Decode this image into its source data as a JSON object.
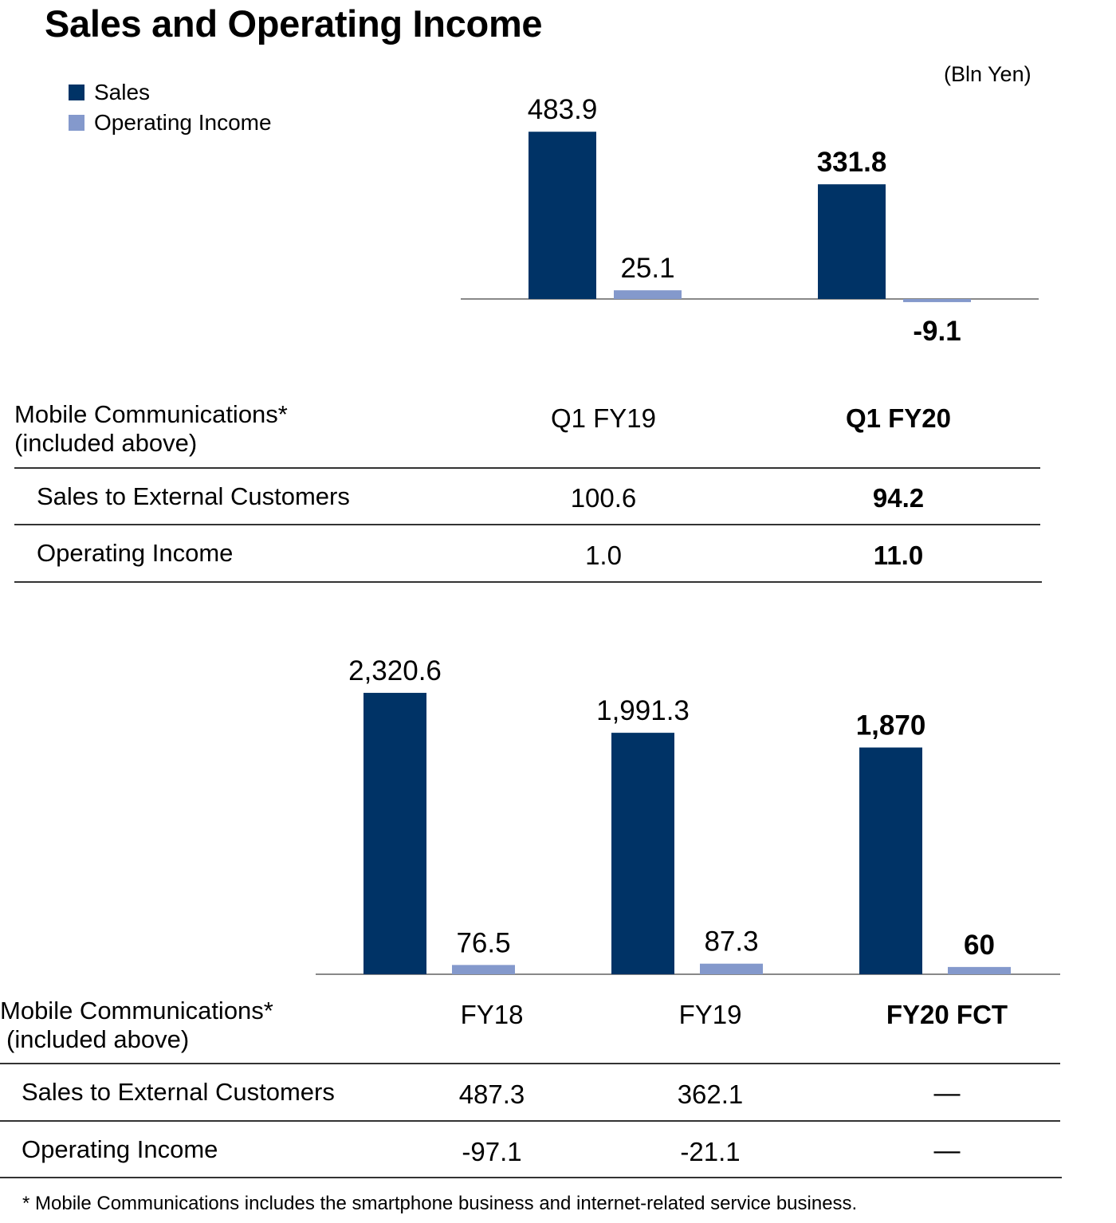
{
  "title": "Sales and Operating Income",
  "unit": "(Bln Yen)",
  "legend": [
    {
      "label": "Sales",
      "color": "#003366"
    },
    {
      "label": "Operating Income",
      "color": "#8499cc"
    }
  ],
  "chart_data": [
    {
      "type": "bar",
      "categories": [
        "Q1 FY19",
        "Q1 FY20"
      ],
      "series": [
        {
          "name": "Sales",
          "values": [
            483.9,
            331.8
          ],
          "labels": [
            "483.9",
            "331.8"
          ]
        },
        {
          "name": "Operating Income",
          "values": [
            25.1,
            -9.1
          ],
          "labels": [
            "25.1",
            "-9.1"
          ]
        }
      ],
      "bold_category_index": 1,
      "legend_placement": "top-left",
      "grid": false
    },
    {
      "type": "bar",
      "categories": [
        "FY18",
        "FY19",
        "FY20 FCT"
      ],
      "series": [
        {
          "name": "Sales",
          "values": [
            2320.6,
            1991.3,
            1870
          ],
          "labels": [
            "2,320.6",
            "1,991.3",
            "1,870"
          ]
        },
        {
          "name": "Operating Income",
          "values": [
            76.5,
            87.3,
            60
          ],
          "labels": [
            "76.5",
            "87.3",
            "60"
          ]
        }
      ],
      "bold_category_index": 2,
      "grid": false
    }
  ],
  "tables": [
    {
      "header_line1": "Mobile Communications*",
      "header_line2": "(included above)",
      "columns": [
        "Q1 FY19",
        "Q1 FY20"
      ],
      "rows": [
        {
          "label": "Sales to External Customers",
          "values": [
            "100.6",
            "94.2"
          ]
        },
        {
          "label": "Operating Income",
          "values": [
            "1.0",
            "11.0"
          ]
        }
      ]
    },
    {
      "header_line1": "Mobile Communications*",
      "header_line2": "(included above)",
      "columns": [
        "FY18",
        "FY19",
        "FY20 FCT"
      ],
      "rows": [
        {
          "label": "Sales to External Customers",
          "values": [
            "487.3",
            "362.1",
            "—"
          ]
        },
        {
          "label": "Operating Income",
          "values": [
            "-97.1",
            "-21.1",
            "—"
          ]
        }
      ]
    }
  ],
  "footnote": "* Mobile Communications includes the smartphone business and internet-related service business."
}
